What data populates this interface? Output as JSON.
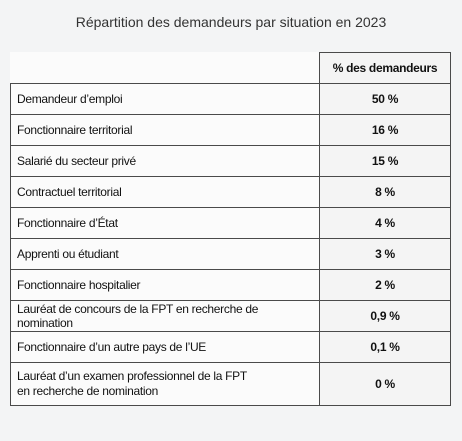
{
  "title": "Répartition des demandeurs par situation en 2023",
  "table": {
    "header": "% des demandeurs",
    "rows": [
      [
        "Demandeur d’emploi",
        "50 %"
      ],
      [
        "Fonctionnaire territorial",
        "16 %"
      ],
      [
        "Salarié du secteur privé",
        "15 %"
      ],
      [
        "Contractuel territorial",
        "8 %"
      ],
      [
        "Fonctionnaire d’État",
        "4 %"
      ],
      [
        "Apprenti ou étudiant",
        "3 %"
      ],
      [
        "Fonctionnaire hospitalier",
        "2 %"
      ],
      [
        "Lauréat de concours de la FPT en recherche de nomination",
        "0,9 %"
      ],
      [
        "Fonctionnaire d’un autre pays de l’UE",
        "0,1 %"
      ],
      [
        [
          "Lauréat d’un examen professionnel de la FPT",
          "en recherche de nomination"
        ],
        "0 %"
      ]
    ]
  }
}
